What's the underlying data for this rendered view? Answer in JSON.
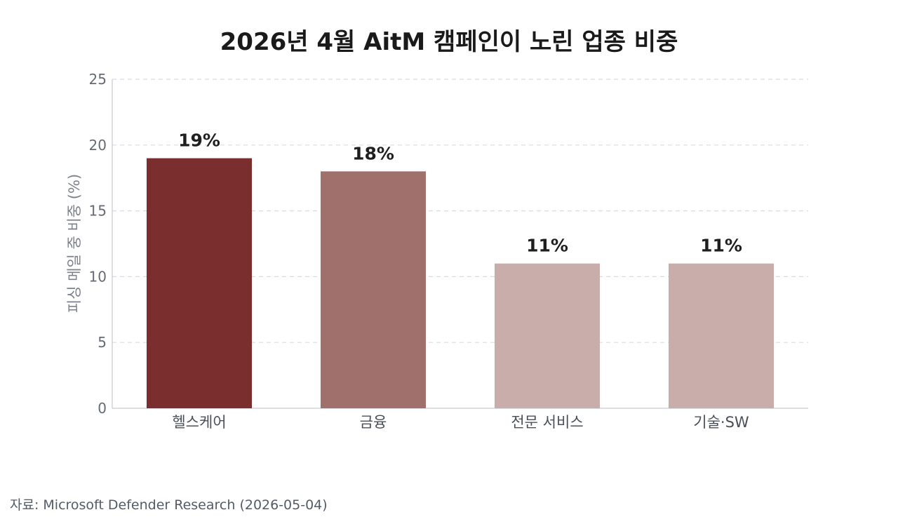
{
  "chart_data": {
    "type": "bar",
    "title": "2026년 4월 AitM 캠페인이 노린 업종 비중",
    "xlabel": "",
    "ylabel": "피싱 메일 중 비중 (%)",
    "categories": [
      "헬스케어",
      "금융",
      "전문 서비스",
      "기술·SW"
    ],
    "values": [
      19,
      18,
      11,
      11
    ],
    "data_labels": [
      "19%",
      "18%",
      "11%",
      "11%"
    ],
    "ylim": [
      0,
      25
    ],
    "yticks": [
      0,
      5,
      10,
      15,
      20,
      25
    ],
    "grid": true,
    "bar_colors": [
      "#7a2e2e",
      "#a0706d",
      "#c9adab",
      "#c9adab"
    ]
  },
  "footer": {
    "source": "자료: Microsoft Defender Research (2026-05-04)"
  }
}
